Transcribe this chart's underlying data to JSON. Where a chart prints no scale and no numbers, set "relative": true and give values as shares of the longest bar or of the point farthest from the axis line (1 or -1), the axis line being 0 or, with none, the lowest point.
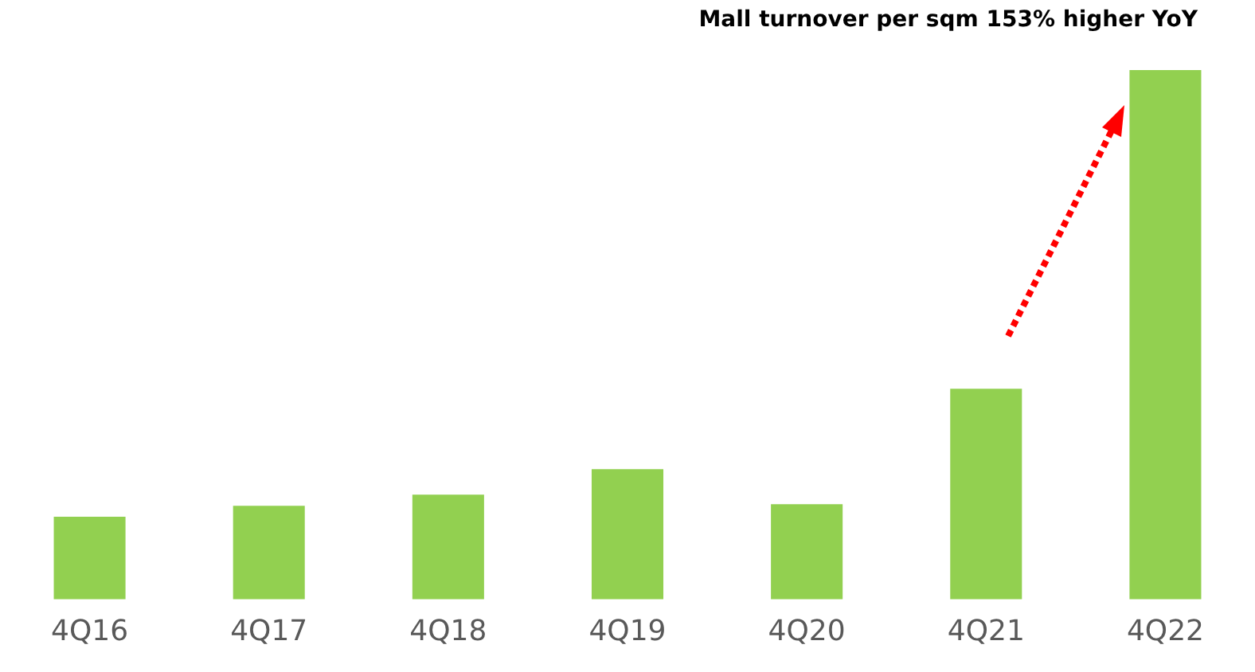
{
  "chart_data": {
    "type": "bar",
    "relative": true,
    "categories": [
      "4Q16",
      "4Q17",
      "4Q18",
      "4Q19",
      "4Q20",
      "4Q21",
      "4Q22"
    ],
    "values": [
      0.156,
      0.177,
      0.198,
      0.246,
      0.18,
      0.398,
      1
    ],
    "color": "#92d050",
    "annotations": [
      "Mall turnover per sqm 153% higher YoY"
    ],
    "grid": false,
    "legend": false
  }
}
